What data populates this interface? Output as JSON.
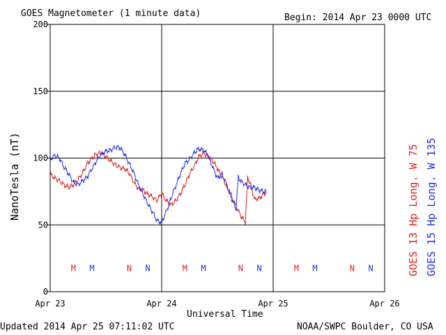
{
  "header": {
    "title": "GOES Magnetometer (1 minute data)",
    "begin": "Begin:  2014 Apr 23 0000 UTC"
  },
  "footer": {
    "updated": "Updated 2014 Apr 25 07:11:02 UTC",
    "source": "NOAA/SWPC Boulder, CO USA"
  },
  "colors": {
    "goes13": "#e02020",
    "goes15": "#2030e0",
    "grid": "#000000"
  },
  "chart_data": {
    "type": "line",
    "title": "GOES Magnetometer (1 minute data)",
    "xlabel": "Universal Time",
    "ylabel": "NanoTesla (nT)",
    "ylim": [
      0,
      200
    ],
    "yticks": [
      "0",
      "50",
      "100",
      "150",
      "200"
    ],
    "xlim": [
      0,
      72
    ],
    "xticks": [
      {
        "label": "Apr 23",
        "h": 0
      },
      {
        "label": "Apr 24",
        "h": 24
      },
      {
        "label": "Apr 25",
        "h": 48
      },
      {
        "label": "Apr 26",
        "h": 72
      }
    ],
    "grid": true,
    "legend_position": "right (vertical)",
    "series": [
      {
        "name": "GOES 13 Hp  Long. W 75",
        "color": "#e02020",
        "points": [
          [
            0,
            88
          ],
          [
            1,
            85
          ],
          [
            2,
            83
          ],
          [
            3,
            80
          ],
          [
            4,
            78
          ],
          [
            5,
            80
          ],
          [
            6,
            84
          ],
          [
            7,
            89
          ],
          [
            8,
            96
          ],
          [
            9,
            100
          ],
          [
            10,
            103
          ],
          [
            11,
            104
          ],
          [
            12,
            101
          ],
          [
            13,
            98
          ],
          [
            14,
            95
          ],
          [
            15,
            93
          ],
          [
            16,
            92
          ],
          [
            17,
            89
          ],
          [
            18,
            82
          ],
          [
            19,
            77
          ],
          [
            20,
            76
          ],
          [
            21,
            73
          ],
          [
            22,
            71
          ],
          [
            23,
            68
          ],
          [
            24,
            74
          ],
          [
            25,
            68
          ],
          [
            26,
            65
          ],
          [
            27,
            68
          ],
          [
            28,
            73
          ],
          [
            29,
            80
          ],
          [
            30,
            88
          ],
          [
            31,
            94
          ],
          [
            32,
            101
          ],
          [
            33,
            104
          ],
          [
            34,
            101
          ],
          [
            35,
            98
          ],
          [
            36,
            92
          ],
          [
            37,
            86
          ],
          [
            38,
            79
          ],
          [
            39,
            72
          ],
          [
            40,
            64
          ],
          [
            41,
            57
          ],
          [
            42,
            52
          ],
          [
            42.5,
            85
          ],
          [
            43,
            82
          ],
          [
            44,
            69
          ],
          [
            45,
            70
          ],
          [
            46,
            73
          ],
          [
            46.5,
            75
          ]
        ]
      },
      {
        "name": "GOES 15 Hp  Long. W 135",
        "color": "#2030e0",
        "points": [
          [
            0,
            99
          ],
          [
            1,
            102
          ],
          [
            2,
            100
          ],
          [
            3,
            93
          ],
          [
            4,
            88
          ],
          [
            5,
            82
          ],
          [
            6,
            80
          ],
          [
            7,
            83
          ],
          [
            8,
            86
          ],
          [
            9,
            92
          ],
          [
            10,
            98
          ],
          [
            11,
            103
          ],
          [
            12,
            105
          ],
          [
            13,
            106
          ],
          [
            14,
            108
          ],
          [
            15,
            108
          ],
          [
            16,
            103
          ],
          [
            17,
            96
          ],
          [
            18,
            89
          ],
          [
            19,
            80
          ],
          [
            20,
            73
          ],
          [
            21,
            66
          ],
          [
            22,
            60
          ],
          [
            23,
            53
          ],
          [
            24,
            52
          ],
          [
            25,
            60
          ],
          [
            26,
            70
          ],
          [
            27,
            79
          ],
          [
            28,
            88
          ],
          [
            29,
            96
          ],
          [
            30,
            99
          ],
          [
            31,
            104
          ],
          [
            32,
            107
          ],
          [
            33,
            106
          ],
          [
            34,
            102
          ],
          [
            35,
            93
          ],
          [
            36,
            85
          ],
          [
            37,
            88
          ],
          [
            38,
            80
          ],
          [
            39,
            70
          ],
          [
            40,
            62
          ],
          [
            40.5,
            86
          ],
          [
            41,
            83
          ],
          [
            42,
            80
          ],
          [
            43,
            78
          ],
          [
            44,
            78
          ],
          [
            45,
            76
          ],
          [
            46,
            75
          ],
          [
            46.5,
            75
          ]
        ]
      }
    ],
    "markers": [
      {
        "label": "M",
        "h": 5,
        "series": "GOES 13 Hp  Long. W 75"
      },
      {
        "label": "M",
        "h": 9,
        "series": "GOES 15 Hp  Long. W 135"
      },
      {
        "label": "N",
        "h": 17,
        "series": "GOES 13 Hp  Long. W 75"
      },
      {
        "label": "N",
        "h": 21,
        "series": "GOES 15 Hp  Long. W 135"
      },
      {
        "label": "M",
        "h": 29,
        "series": "GOES 13 Hp  Long. W 75"
      },
      {
        "label": "M",
        "h": 33,
        "series": "GOES 15 Hp  Long. W 135"
      },
      {
        "label": "N",
        "h": 41,
        "series": "GOES 13 Hp  Long. W 75"
      },
      {
        "label": "N",
        "h": 45,
        "series": "GOES 15 Hp  Long. W 135"
      },
      {
        "label": "M",
        "h": 53,
        "series": "GOES 13 Hp  Long. W 75"
      },
      {
        "label": "M",
        "h": 57,
        "series": "GOES 15 Hp  Long. W 135"
      },
      {
        "label": "N",
        "h": 65,
        "series": "GOES 13 Hp  Long. W 75"
      },
      {
        "label": "N",
        "h": 69,
        "series": "GOES 15 Hp  Long. W 135"
      }
    ]
  }
}
